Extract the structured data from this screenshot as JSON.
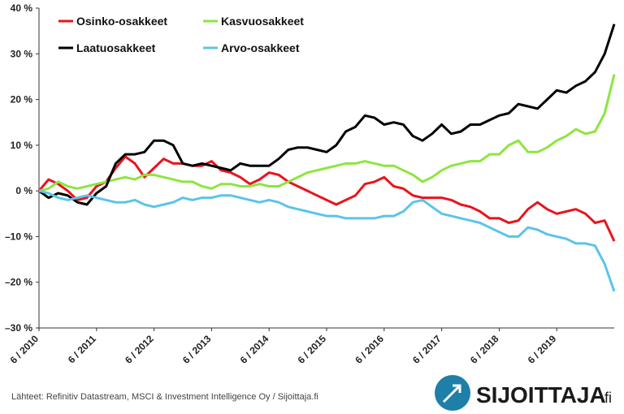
{
  "chart_data": {
    "type": "line",
    "categories": [
      "6 / 2010",
      null,
      null,
      null,
      null,
      null,
      "6 / 2011",
      null,
      null,
      null,
      null,
      null,
      "6 / 2012",
      null,
      null,
      null,
      null,
      null,
      "6 / 2013",
      null,
      null,
      null,
      null,
      null,
      "6 / 2014",
      null,
      null,
      null,
      null,
      null,
      "6 / 2015",
      null,
      null,
      null,
      null,
      null,
      "6 / 2016",
      null,
      null,
      null,
      null,
      null,
      "6 / 2017",
      null,
      null,
      null,
      null,
      null,
      "6 / 2018",
      null,
      null,
      null,
      null,
      null,
      "6 / 2019",
      null,
      null,
      null,
      null,
      null,
      null
    ],
    "series": [
      {
        "name": "Osinko-osakkeet",
        "color": "#e8141c",
        "values": [
          0,
          2.5,
          1.5,
          0,
          -2,
          -1.5,
          1,
          2,
          5,
          7.5,
          6,
          3,
          5,
          7,
          6,
          6,
          5.5,
          5.5,
          6.5,
          4.5,
          4,
          3,
          1.5,
          2.5,
          4,
          3.5,
          2,
          1,
          0,
          -1,
          -2,
          -3,
          -2,
          -1,
          1.5,
          2,
          3,
          1,
          0.5,
          -1,
          -1.5,
          -1.5,
          -1.5,
          -2,
          -3,
          -3.5,
          -4.5,
          -6,
          -6,
          -7,
          -6.5,
          -4,
          -2.5,
          -4,
          -5,
          -4.5,
          -4,
          -5,
          -7,
          -6.5,
          -11
        ]
      },
      {
        "name": "Kasvuosakkeet",
        "color": "#8ee53f",
        "values": [
          0,
          0.5,
          2,
          1,
          0.5,
          1,
          1.5,
          2,
          2.5,
          3,
          2.5,
          3.5,
          3.5,
          3,
          2.5,
          2,
          2,
          1,
          0.5,
          1.5,
          1.5,
          1,
          1,
          1.5,
          1,
          1,
          2,
          3,
          4,
          4.5,
          5,
          5.5,
          6,
          6,
          6.5,
          6,
          5.5,
          5.5,
          4.5,
          3.5,
          2,
          3,
          4.5,
          5.5,
          6,
          6.5,
          6.5,
          8,
          8,
          10,
          11,
          8.5,
          8.5,
          9.5,
          11,
          12,
          13.5,
          12.5,
          13,
          17,
          25.5
        ]
      },
      {
        "name": "Laatuosakkeet",
        "color": "#000000",
        "values": [
          0,
          -1.5,
          -0.5,
          -1,
          -2.5,
          -3,
          -0.5,
          1,
          6,
          8,
          8,
          8.5,
          11,
          11,
          10,
          6,
          5.5,
          6,
          5.5,
          5,
          4.5,
          6,
          5.5,
          5.5,
          5.5,
          7,
          9,
          9.5,
          9.5,
          9,
          8.5,
          10,
          13,
          14,
          16.5,
          16,
          14.5,
          15,
          14.5,
          12,
          11,
          12.5,
          14.5,
          12.5,
          13,
          14.5,
          14.5,
          15.5,
          16.5,
          17,
          19,
          18.5,
          18,
          20,
          22,
          21.5,
          23,
          24,
          26,
          30,
          36.5
        ]
      },
      {
        "name": "Arvo-osakkeet",
        "color": "#5bc4ea",
        "values": [
          0,
          -0.5,
          -1.5,
          -2,
          -1.5,
          -1,
          -1.5,
          -2,
          -2.5,
          -2.5,
          -2,
          -3,
          -3.5,
          -3,
          -2.5,
          -1.5,
          -2,
          -1.5,
          -1.5,
          -1,
          -1,
          -1.5,
          -2,
          -2.5,
          -2,
          -2.5,
          -3.5,
          -4,
          -4.5,
          -5,
          -5.5,
          -5.5,
          -6,
          -6,
          -6,
          -6,
          -5.5,
          -5.5,
          -4.5,
          -2.5,
          -2,
          -3.5,
          -5,
          -5.5,
          -6,
          -6.5,
          -7,
          -8,
          -9,
          -10,
          -10,
          -8,
          -8.5,
          -9.5,
          -10,
          -10.5,
          -11.5,
          -11.5,
          -12,
          -16,
          -22
        ]
      }
    ],
    "ylim": [
      -30,
      40
    ],
    "yticks": [
      {
        "value": 40,
        "label": "40 %"
      },
      {
        "value": 30,
        "label": "30 %"
      },
      {
        "value": 20,
        "label": "20 %"
      },
      {
        "value": 10,
        "label": "10 %"
      },
      {
        "value": 0,
        "label": "0 %"
      },
      {
        "value": -10,
        "label": "–10 %"
      },
      {
        "value": -20,
        "label": "–20 %"
      },
      {
        "value": -30,
        "label": "–30 %"
      }
    ],
    "grid": false
  },
  "source": "Lähteet: Refinitiv Datastream, MSCI & Investment Intelligence Oy / Sijoittaja.fi",
  "logo": {
    "name": "SIJOITTAJA",
    "suffix": ".fi"
  }
}
